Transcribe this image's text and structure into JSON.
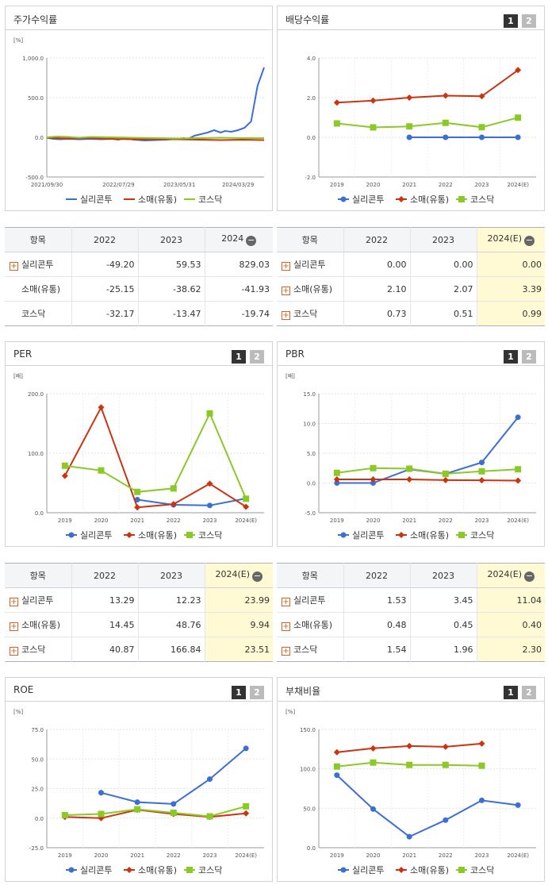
{
  "panels": [
    {
      "key": "stock",
      "title": "주가수익률",
      "buttons": [],
      "chart_data": {
        "type": "line",
        "title": "주가수익률",
        "unit": "[%]",
        "ylim": [
          -500,
          1000
        ],
        "yticks": [
          "1,000.0",
          "500.0",
          "0.0",
          "-500.0"
        ],
        "ytick_values": [
          1000,
          500,
          0,
          -500
        ],
        "xticks": [
          "2021/09/30",
          "2022/07/29",
          "2023/05/31",
          "2024/03/29"
        ],
        "xtick_positions": [
          0,
          0.33,
          0.61,
          0.88
        ],
        "series": [
          {
            "name": "실리콘투",
            "color": "#3b6fd4",
            "marker": "none",
            "x": [
              0,
              0.03,
              0.06,
              0.1,
              0.15,
              0.2,
              0.25,
              0.3,
              0.33,
              0.36,
              0.4,
              0.45,
              0.5,
              0.55,
              0.6,
              0.63,
              0.65,
              0.68,
              0.71,
              0.74,
              0.77,
              0.8,
              0.82,
              0.85,
              0.88,
              0.91,
              0.94,
              0.97,
              1.0
            ],
            "values": [
              -5,
              -20,
              -25,
              -20,
              -25,
              -20,
              -25,
              -20,
              -30,
              -10,
              -30,
              -40,
              -35,
              -30,
              -20,
              -10,
              -20,
              20,
              40,
              60,
              90,
              60,
              80,
              70,
              90,
              120,
              200,
              650,
              880
            ]
          },
          {
            "name": "소매(유통)",
            "color": "#cc3311",
            "marker": "none",
            "x": [
              0,
              0.05,
              0.1,
              0.2,
              0.3,
              0.4,
              0.5,
              0.6,
              0.7,
              0.8,
              0.9,
              1.0
            ],
            "values": [
              -5,
              -10,
              -15,
              -10,
              -20,
              -25,
              -25,
              -25,
              -30,
              -35,
              -30,
              -35
            ]
          },
          {
            "name": "코스닥",
            "color": "#8ac926",
            "marker": "none",
            "x": [
              0,
              0.05,
              0.1,
              0.15,
              0.2,
              0.3,
              0.4,
              0.5,
              0.6,
              0.7,
              0.8,
              0.9,
              1.0
            ],
            "values": [
              0,
              10,
              5,
              -5,
              5,
              0,
              -5,
              -10,
              -15,
              -10,
              -5,
              -10,
              -10
            ]
          }
        ]
      },
      "table": {
        "headers": [
          "항목",
          "2022",
          "2023",
          "2024"
        ],
        "last_header_toggle": true,
        "highlight_last": false,
        "rows": [
          {
            "name": "실리콘투",
            "plus": true,
            "values": [
              "-49.20",
              "59.53",
              "829.03"
            ]
          },
          {
            "name": "소매(유통)",
            "plus": false,
            "values": [
              "-25.15",
              "-38.62",
              "-41.93"
            ]
          },
          {
            "name": "코스닥",
            "plus": false,
            "values": [
              "-32.17",
              "-13.47",
              "-19.74"
            ]
          }
        ]
      }
    },
    {
      "key": "dividend",
      "title": "배당수익률",
      "buttons": [
        "1",
        "2"
      ],
      "chart_data": {
        "type": "line",
        "title": "배당수익률",
        "unit": "",
        "ylim": [
          -2,
          4
        ],
        "yticks": [
          "4.0",
          "2.0",
          "0.0",
          "-2.0"
        ],
        "ytick_values": [
          4,
          2,
          0,
          -2
        ],
        "categories": [
          "2019",
          "2020",
          "2021",
          "2022",
          "2023",
          "2024(E)"
        ],
        "series": [
          {
            "name": "실리콘투",
            "color": "#3b6fd4",
            "marker": "circle",
            "values": [
              null,
              null,
              0.0,
              0.0,
              0.0,
              0.0
            ]
          },
          {
            "name": "소매(유통)",
            "color": "#cc3311",
            "marker": "diamond",
            "values": [
              1.75,
              1.85,
              2.0,
              2.1,
              2.07,
              3.39
            ]
          },
          {
            "name": "코스닥",
            "color": "#8ac926",
            "marker": "square",
            "values": [
              0.7,
              0.5,
              0.55,
              0.73,
              0.51,
              0.99
            ]
          }
        ]
      },
      "table": {
        "headers": [
          "항목",
          "2022",
          "2023",
          "2024(E)"
        ],
        "last_header_toggle": true,
        "highlight_last": true,
        "rows": [
          {
            "name": "실리콘투",
            "plus": true,
            "values": [
              "0.00",
              "0.00",
              "0.00"
            ]
          },
          {
            "name": "소매(유통)",
            "plus": true,
            "values": [
              "2.10",
              "2.07",
              "3.39"
            ]
          },
          {
            "name": "코스닥",
            "plus": true,
            "values": [
              "0.73",
              "0.51",
              "0.99"
            ]
          }
        ]
      }
    },
    {
      "key": "per",
      "title": "PER",
      "buttons": [
        "1",
        "2"
      ],
      "chart_data": {
        "type": "line",
        "title": "PER",
        "unit": "[배]",
        "ylim": [
          0,
          200
        ],
        "yticks": [
          "200.0",
          "100.0",
          "0.0"
        ],
        "ytick_values": [
          200,
          100,
          0
        ],
        "categories": [
          "2019",
          "2020",
          "2021",
          "2022",
          "2023",
          "2024(E)"
        ],
        "series": [
          {
            "name": "실리콘투",
            "color": "#3b6fd4",
            "marker": "circle",
            "values": [
              null,
              null,
              22,
              13.29,
              12.23,
              23.99
            ]
          },
          {
            "name": "소매(유통)",
            "color": "#cc3311",
            "marker": "diamond",
            "values": [
              62,
              177,
              9,
              14.45,
              48.76,
              9.94
            ]
          },
          {
            "name": "코스닥",
            "color": "#8ac926",
            "marker": "square",
            "values": [
              79,
              71,
              35,
              40.87,
              166.84,
              23.51
            ]
          }
        ]
      },
      "table": {
        "headers": [
          "항목",
          "2022",
          "2023",
          "2024(E)"
        ],
        "last_header_toggle": true,
        "highlight_last": true,
        "rows": [
          {
            "name": "실리콘투",
            "plus": true,
            "values": [
              "13.29",
              "12.23",
              "23.99"
            ]
          },
          {
            "name": "소매(유통)",
            "plus": true,
            "values": [
              "14.45",
              "48.76",
              "9.94"
            ]
          },
          {
            "name": "코스닥",
            "plus": true,
            "values": [
              "40.87",
              "166.84",
              "23.51"
            ]
          }
        ]
      }
    },
    {
      "key": "pbr",
      "title": "PBR",
      "buttons": [
        "1",
        "2"
      ],
      "chart_data": {
        "type": "line",
        "title": "PBR",
        "unit": "[배]",
        "ylim": [
          -5,
          15
        ],
        "yticks": [
          "15.0",
          "10.0",
          "5.0",
          "0.0",
          "-5.0"
        ],
        "ytick_values": [
          15,
          10,
          5,
          0,
          -5
        ],
        "categories": [
          "2019",
          "2020",
          "2021",
          "2022",
          "2023",
          "2024(E)"
        ],
        "series": [
          {
            "name": "실리콘투",
            "color": "#3b6fd4",
            "marker": "circle",
            "values": [
              0.0,
              0.0,
              2.3,
              1.53,
              3.45,
              11.04
            ]
          },
          {
            "name": "소매(유통)",
            "color": "#cc3311",
            "marker": "diamond",
            "values": [
              0.6,
              0.6,
              0.6,
              0.48,
              0.45,
              0.4
            ]
          },
          {
            "name": "코스닥",
            "color": "#8ac926",
            "marker": "square",
            "values": [
              1.7,
              2.5,
              2.4,
              1.54,
              1.96,
              2.3
            ]
          }
        ]
      },
      "table": {
        "headers": [
          "항목",
          "2022",
          "2023",
          "2024(E)"
        ],
        "last_header_toggle": true,
        "highlight_last": true,
        "rows": [
          {
            "name": "실리콘투",
            "plus": true,
            "values": [
              "1.53",
              "3.45",
              "11.04"
            ]
          },
          {
            "name": "소매(유통)",
            "plus": true,
            "values": [
              "0.48",
              "0.45",
              "0.40"
            ]
          },
          {
            "name": "코스닥",
            "plus": true,
            "values": [
              "1.54",
              "1.96",
              "2.30"
            ]
          }
        ]
      }
    },
    {
      "key": "roe",
      "title": "ROE",
      "buttons": [
        "1",
        "2"
      ],
      "chart_data": {
        "type": "line",
        "title": "ROE",
        "unit": "[%]",
        "ylim": [
          -25,
          75
        ],
        "yticks": [
          "75.0",
          "50.0",
          "25.0",
          "0.0",
          "-25.0"
        ],
        "ytick_values": [
          75,
          50,
          25,
          0,
          -25
        ],
        "categories": [
          "2019",
          "2020",
          "2021",
          "2022",
          "2023",
          "2024(E)"
        ],
        "series": [
          {
            "name": "실리콘투",
            "color": "#3b6fd4",
            "marker": "circle",
            "values": [
              null,
              21.5,
              13.5,
              12.0,
              33.0,
              59.0
            ]
          },
          {
            "name": "소매(유통)",
            "color": "#cc3311",
            "marker": "diamond",
            "values": [
              1.0,
              0.0,
              7.0,
              3.5,
              1.0,
              4.0
            ]
          },
          {
            "name": "코스닥",
            "color": "#8ac926",
            "marker": "square",
            "values": [
              2.5,
              3.5,
              7.5,
              4.5,
              1.5,
              10.0
            ]
          }
        ]
      },
      "table": null
    },
    {
      "key": "debt",
      "title": "부채비율",
      "buttons": [
        "1",
        "2"
      ],
      "chart_data": {
        "type": "line",
        "title": "부채비율",
        "unit": "[%]",
        "ylim": [
          0,
          150
        ],
        "yticks": [
          "150.0",
          "100.0",
          "50.0",
          "0.0"
        ],
        "ytick_values": [
          150,
          100,
          50,
          0
        ],
        "categories": [
          "2019",
          "2020",
          "2021",
          "2022",
          "2023",
          "2024(E)"
        ],
        "series": [
          {
            "name": "실리콘투",
            "color": "#3b6fd4",
            "marker": "circle",
            "values": [
              92,
              49,
              14,
              35,
              60,
              54
            ]
          },
          {
            "name": "소매(유통)",
            "color": "#cc3311",
            "marker": "diamond",
            "values": [
              121,
              126,
              129,
              128,
              132,
              null
            ]
          },
          {
            "name": "코스닥",
            "color": "#8ac926",
            "marker": "square",
            "values": [
              103,
              108,
              105,
              105,
              104,
              null
            ]
          }
        ]
      },
      "table": null
    }
  ]
}
